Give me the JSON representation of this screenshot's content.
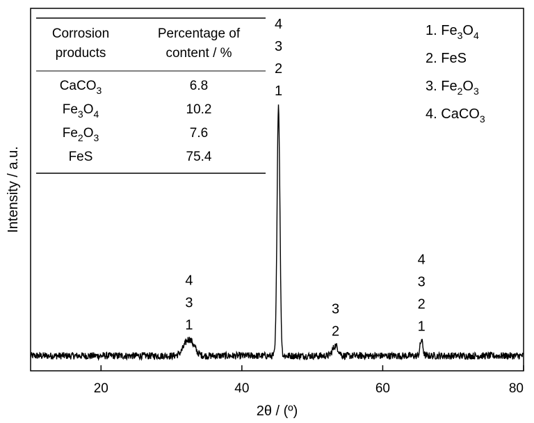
{
  "chart_data": {
    "type": "line",
    "xlabel": "2θ / (º)",
    "ylabel": "Intensity / a.u.",
    "xlim": [
      10,
      80
    ],
    "ylim": [
      0,
      100
    ],
    "xticks": [
      20,
      40,
      60,
      80
    ],
    "grid": false,
    "legend": {
      "placement": "top-right",
      "entries": [
        {
          "num": "1.",
          "base": "Fe",
          "s1": "3",
          "mid": "O",
          "s2": "4"
        },
        {
          "num": "2.",
          "base": "FeS",
          "s1": "",
          "mid": "",
          "s2": ""
        },
        {
          "num": "3.",
          "base": "Fe",
          "s1": "2",
          "mid": "O",
          "s2": "3"
        },
        {
          "num": "4.",
          "base": "CaCO",
          "s1": "3",
          "mid": "",
          "s2": ""
        }
      ]
    },
    "table": {
      "headers": [
        [
          "Corrosion",
          "products"
        ],
        [
          "Percentage of",
          "content / %"
        ]
      ],
      "rows": [
        {
          "base": "CaCO",
          "s1": "3",
          "mid": "",
          "s2": "",
          "value": "6.8"
        },
        {
          "base": "Fe",
          "s1": "3",
          "mid": "O",
          "s2": "4",
          "value": "10.2"
        },
        {
          "base": "Fe",
          "s1": "2",
          "mid": "O",
          "s2": "3",
          "value": "7.6"
        },
        {
          "base": "FeS",
          "s1": "",
          "mid": "",
          "s2": "",
          "value": "75.4"
        }
      ]
    },
    "peaks": [
      {
        "x": 32.5,
        "height": 6.5,
        "width": 0.7,
        "labels": [
          "4",
          "3",
          "1"
        ]
      },
      {
        "x": 45.2,
        "height": 98,
        "width": 0.2,
        "labels": [
          "4",
          "3",
          "2",
          "1"
        ]
      },
      {
        "x": 53.3,
        "height": 4.0,
        "width": 0.4,
        "labels": [
          "3",
          "2"
        ]
      },
      {
        "x": 65.5,
        "height": 6.0,
        "width": 0.2,
        "labels": [
          "4",
          "3",
          "2",
          "1"
        ]
      }
    ],
    "baseline": 4.5,
    "noise": 1.4
  }
}
